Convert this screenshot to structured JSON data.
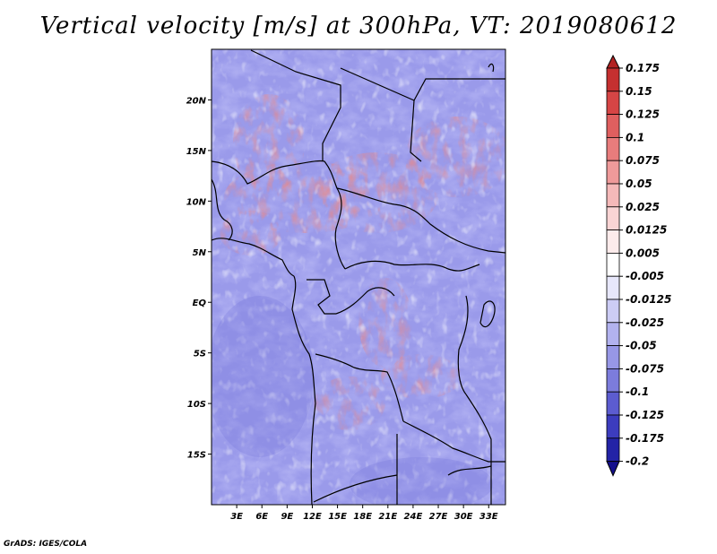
{
  "title": "Vertical velocity [m/s] at 300hPa, VT: 2019080612",
  "credit": "GrADS: IGES/COLA",
  "map": {
    "lon_labels": [
      "3E",
      "6E",
      "9E",
      "12E",
      "15E",
      "18E",
      "21E",
      "24E",
      "27E",
      "30E",
      "33E"
    ],
    "lat_labels": [
      "20N",
      "15N",
      "10N",
      "5N",
      "EQ",
      "5S",
      "10S",
      "15S"
    ],
    "lon_range": [
      0,
      35
    ],
    "lat_range": [
      -20,
      25
    ]
  },
  "colorbar": {
    "labels": [
      "0.175",
      "0.15",
      "0.125",
      "0.1",
      "0.075",
      "0.05",
      "0.025",
      "0.0125",
      "0.005",
      "-0.005",
      "-0.0125",
      "-0.025",
      "-0.05",
      "-0.075",
      "-0.1",
      "-0.125",
      "-0.175",
      "-0.2"
    ],
    "colors": [
      "#b22222",
      "#c53030",
      "#d64545",
      "#df5f5f",
      "#e87c7c",
      "#ef9a9a",
      "#f5b9b9",
      "#f9d4d4",
      "#fcebeb",
      "#ffffff",
      "#e7e7fb",
      "#ccccf5",
      "#b2b2ef",
      "#9797e6",
      "#7c7cdc",
      "#5c5cd0",
      "#3c3cbe",
      "#2323a6",
      "#140f8c"
    ]
  }
}
